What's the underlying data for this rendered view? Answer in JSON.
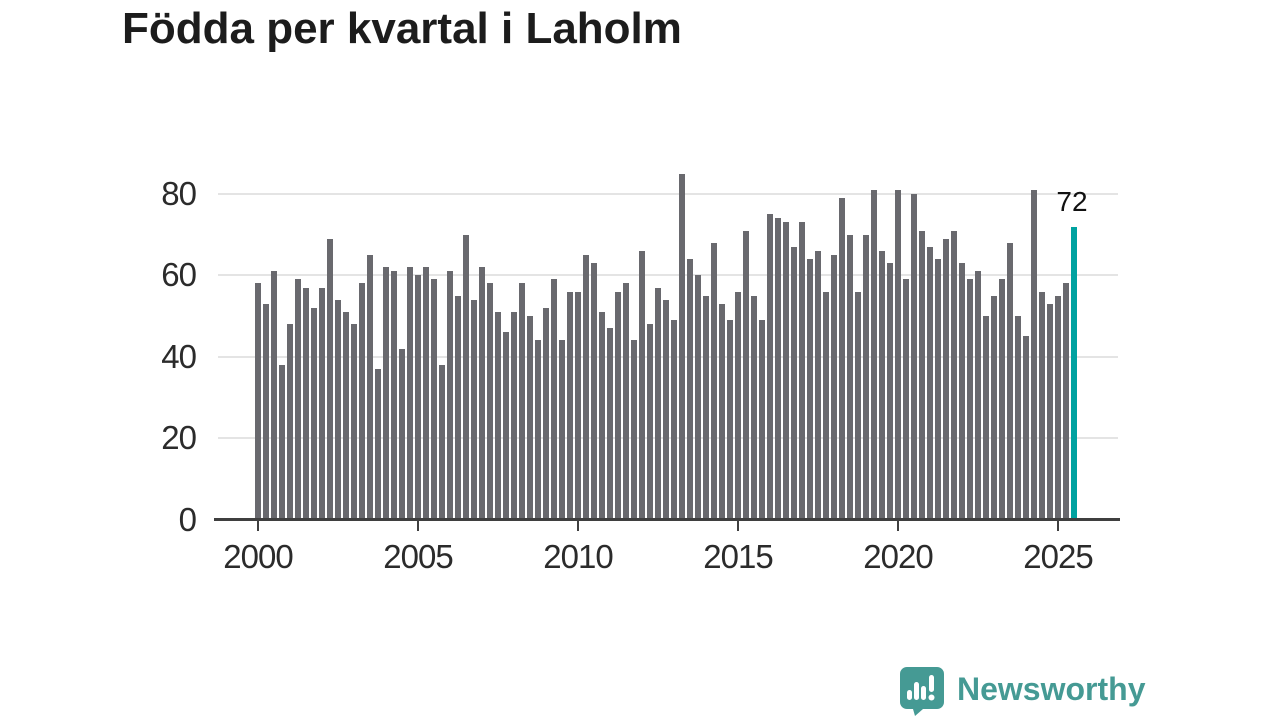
{
  "title": "Födda per kvartal i Laholm",
  "chart_data": {
    "type": "bar",
    "title": "Födda per kvartal i Laholm",
    "x_start": "2000-Q1",
    "x_end": "2025-Q3",
    "frequency": "quarterly",
    "x_tick_labels": [
      "2000",
      "2005",
      "2010",
      "2015",
      "2020",
      "2025"
    ],
    "y_tick_labels": [
      "0",
      "20",
      "40",
      "60",
      "80"
    ],
    "y_ticks": [
      0,
      20,
      40,
      60,
      80
    ],
    "ylim": [
      0,
      88
    ],
    "grid": "horizontal",
    "legend": "none",
    "bar_color": "#69696e",
    "highlight_color": "#00a2a0",
    "highlight_index": 102,
    "highlight_label": "72",
    "values": [
      58,
      53,
      61,
      38,
      48,
      59,
      57,
      52,
      57,
      69,
      54,
      51,
      48,
      58,
      65,
      37,
      62,
      61,
      42,
      62,
      60,
      62,
      59,
      38,
      61,
      55,
      70,
      54,
      62,
      58,
      51,
      46,
      51,
      58,
      50,
      44,
      52,
      59,
      44,
      56,
      56,
      65,
      63,
      51,
      47,
      56,
      58,
      44,
      66,
      48,
      57,
      54,
      49,
      85,
      64,
      60,
      55,
      68,
      53,
      49,
      56,
      71,
      55,
      49,
      75,
      74,
      73,
      67,
      73,
      64,
      66,
      56,
      65,
      79,
      70,
      56,
      70,
      81,
      66,
      63,
      81,
      59,
      80,
      71,
      67,
      64,
      69,
      71,
      63,
      59,
      61,
      50,
      55,
      59,
      68,
      50,
      45,
      81,
      56,
      53,
      55,
      58,
      72
    ]
  },
  "annotation": {
    "last_value": "72"
  },
  "logo": {
    "text": "Newsworthy",
    "color": "#459a94",
    "icon": "speech-bubble-bar-chart"
  }
}
